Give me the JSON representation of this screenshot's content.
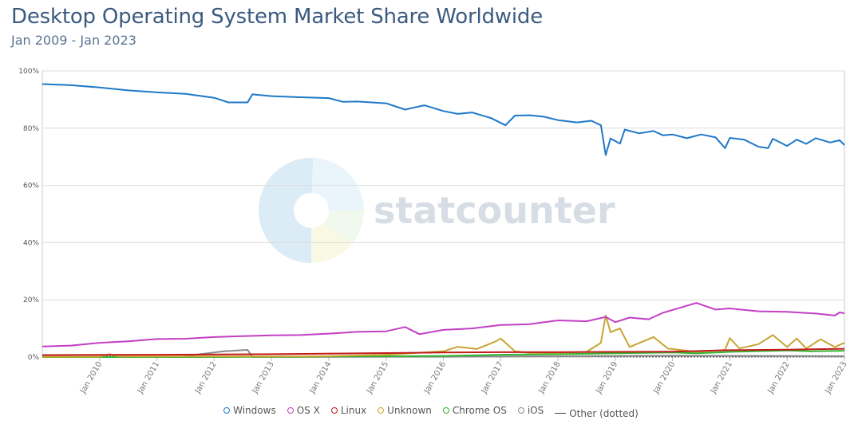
{
  "chart_data": {
    "type": "line",
    "title": "Desktop Operating System Market Share Worldwide",
    "subtitle": "Jan 2009 - Jan 2023",
    "xlabel": "",
    "ylabel": "",
    "x_range": [
      "2009-01",
      "2023-01"
    ],
    "ylim": [
      0,
      100
    ],
    "y_ticks": [
      "0%",
      "20%",
      "40%",
      "60%",
      "80%",
      "100%"
    ],
    "x_ticks": [
      "Jan 2010",
      "Jan 2011",
      "Jan 2012",
      "Jan 2013",
      "Jan 2014",
      "Jan 2015",
      "Jan 2016",
      "Jan 2017",
      "Jan 2018",
      "Jan 2019",
      "Jan 2020",
      "Jan 2021",
      "Jan 2022",
      "Jan 2023"
    ],
    "grid": true,
    "legend_position": "bottom",
    "watermark": "statcounter",
    "series": [
      {
        "name": "Windows",
        "color": "#1f78c8",
        "points": [
          [
            "2009-01",
            95.4
          ],
          [
            "2009-07",
            95.0
          ],
          [
            "2010-01",
            94.2
          ],
          [
            "2010-07",
            93.2
          ],
          [
            "2011-01",
            92.5
          ],
          [
            "2011-07",
            92.0
          ],
          [
            "2012-01",
            90.6
          ],
          [
            "2012-04",
            89.0
          ],
          [
            "2012-08",
            89.0
          ],
          [
            "2012-09",
            91.8
          ],
          [
            "2013-01",
            91.2
          ],
          [
            "2013-07",
            90.8
          ],
          [
            "2014-01",
            90.5
          ],
          [
            "2014-04",
            89.2
          ],
          [
            "2014-07",
            89.3
          ],
          [
            "2015-01",
            88.7
          ],
          [
            "2015-05",
            86.5
          ],
          [
            "2015-09",
            88.0
          ],
          [
            "2016-01",
            86.0
          ],
          [
            "2016-04",
            85.0
          ],
          [
            "2016-07",
            85.5
          ],
          [
            "2016-11",
            83.5
          ],
          [
            "2017-02",
            81.0
          ],
          [
            "2017-04",
            84.4
          ],
          [
            "2017-07",
            84.5
          ],
          [
            "2017-10",
            84.0
          ],
          [
            "2018-01",
            82.8
          ],
          [
            "2018-05",
            82.0
          ],
          [
            "2018-08",
            82.6
          ],
          [
            "2018-10",
            81.0
          ],
          [
            "2018-11",
            70.6
          ],
          [
            "2018-12",
            76.4
          ],
          [
            "2019-02",
            74.6
          ],
          [
            "2019-03",
            79.5
          ],
          [
            "2019-06",
            78.2
          ],
          [
            "2019-09",
            79.0
          ],
          [
            "2019-11",
            77.5
          ],
          [
            "2020-01",
            77.8
          ],
          [
            "2020-04",
            76.5
          ],
          [
            "2020-07",
            77.8
          ],
          [
            "2020-10",
            76.8
          ],
          [
            "2020-12",
            73.0
          ],
          [
            "2021-01",
            76.6
          ],
          [
            "2021-04",
            76.0
          ],
          [
            "2021-07",
            73.5
          ],
          [
            "2021-09",
            73.0
          ],
          [
            "2021-10",
            76.3
          ],
          [
            "2022-01",
            73.8
          ],
          [
            "2022-03",
            76.0
          ],
          [
            "2022-05",
            74.5
          ],
          [
            "2022-07",
            76.5
          ],
          [
            "2022-10",
            75.0
          ],
          [
            "2022-12",
            75.8
          ],
          [
            "2023-01",
            74.1
          ]
        ]
      },
      {
        "name": "OS X",
        "color": "#c33ec4",
        "points": [
          [
            "2009-01",
            3.7
          ],
          [
            "2009-07",
            4.0
          ],
          [
            "2010-01",
            5.0
          ],
          [
            "2010-07",
            5.5
          ],
          [
            "2011-01",
            6.3
          ],
          [
            "2011-07",
            6.4
          ],
          [
            "2012-01",
            7.0
          ],
          [
            "2012-07",
            7.3
          ],
          [
            "2013-01",
            7.6
          ],
          [
            "2013-07",
            7.7
          ],
          [
            "2014-01",
            8.2
          ],
          [
            "2014-07",
            8.8
          ],
          [
            "2015-01",
            9.0
          ],
          [
            "2015-05",
            10.5
          ],
          [
            "2015-08",
            8.0
          ],
          [
            "2016-01",
            9.5
          ],
          [
            "2016-07",
            10.0
          ],
          [
            "2017-01",
            11.2
          ],
          [
            "2017-07",
            11.5
          ],
          [
            "2018-01",
            12.8
          ],
          [
            "2018-07",
            12.5
          ],
          [
            "2018-11",
            14.0
          ],
          [
            "2019-01",
            12.2
          ],
          [
            "2019-04",
            13.8
          ],
          [
            "2019-08",
            13.2
          ],
          [
            "2019-11",
            15.5
          ],
          [
            "2020-06",
            18.9
          ],
          [
            "2020-10",
            16.6
          ],
          [
            "2021-01",
            17.0
          ],
          [
            "2021-07",
            16.0
          ],
          [
            "2022-01",
            15.8
          ],
          [
            "2022-07",
            15.2
          ],
          [
            "2022-11",
            14.5
          ],
          [
            "2022-12",
            15.6
          ],
          [
            "2023-01",
            15.3
          ]
        ]
      },
      {
        "name": "Linux",
        "color": "#c21b1b",
        "points": [
          [
            "2009-01",
            0.7
          ],
          [
            "2011-01",
            0.8
          ],
          [
            "2013-01",
            1.0
          ],
          [
            "2015-01",
            1.4
          ],
          [
            "2016-01",
            1.6
          ],
          [
            "2017-01",
            1.7
          ],
          [
            "2018-01",
            1.7
          ],
          [
            "2019-01",
            1.8
          ],
          [
            "2020-01",
            1.9
          ],
          [
            "2021-01",
            2.4
          ],
          [
            "2022-01",
            2.6
          ],
          [
            "2023-01",
            2.9
          ]
        ]
      },
      {
        "name": "Unknown",
        "color": "#c8a533",
        "points": [
          [
            "2009-01",
            0.1
          ],
          [
            "2010-01",
            0.1
          ],
          [
            "2010-03",
            1.0
          ],
          [
            "2010-05",
            0.2
          ],
          [
            "2013-01",
            0.2
          ],
          [
            "2014-01",
            0.3
          ],
          [
            "2015-01",
            0.8
          ],
          [
            "2016-01",
            2.0
          ],
          [
            "2016-04",
            3.6
          ],
          [
            "2016-08",
            2.8
          ],
          [
            "2016-12",
            5.5
          ],
          [
            "2017-01",
            6.5
          ],
          [
            "2017-04",
            2.0
          ],
          [
            "2017-07",
            1.5
          ],
          [
            "2018-01",
            1.5
          ],
          [
            "2018-07",
            1.8
          ],
          [
            "2018-10",
            5.0
          ],
          [
            "2018-11",
            14.6
          ],
          [
            "2018-12",
            8.7
          ],
          [
            "2019-02",
            10.0
          ],
          [
            "2019-04",
            3.5
          ],
          [
            "2019-09",
            7.0
          ],
          [
            "2019-12",
            3.0
          ],
          [
            "2020-06",
            1.8
          ],
          [
            "2020-12",
            2.5
          ],
          [
            "2021-01",
            6.6
          ],
          [
            "2021-03",
            3.0
          ],
          [
            "2021-07",
            4.5
          ],
          [
            "2021-10",
            7.7
          ],
          [
            "2022-01",
            3.5
          ],
          [
            "2022-03",
            6.5
          ],
          [
            "2022-05",
            3.0
          ],
          [
            "2022-08",
            6.2
          ],
          [
            "2022-11",
            3.5
          ],
          [
            "2023-01",
            5.0
          ]
        ]
      },
      {
        "name": "Chrome OS",
        "color": "#2fb52f",
        "points": [
          [
            "2009-01",
            0.0
          ],
          [
            "2012-01",
            0.0
          ],
          [
            "2014-01",
            0.2
          ],
          [
            "2016-01",
            0.4
          ],
          [
            "2017-01",
            0.8
          ],
          [
            "2018-01",
            1.0
          ],
          [
            "2019-01",
            1.3
          ],
          [
            "2020-01",
            1.6
          ],
          [
            "2020-06",
            1.3
          ],
          [
            "2021-01",
            1.8
          ],
          [
            "2021-06",
            2.0
          ],
          [
            "2022-01",
            2.3
          ],
          [
            "2022-06",
            2.0
          ],
          [
            "2023-01",
            2.2
          ]
        ]
      },
      {
        "name": "iOS",
        "color": "#8a8a8a",
        "points": [
          [
            "2009-01",
            0.0
          ],
          [
            "2011-06",
            0.0
          ],
          [
            "2011-10",
            1.0
          ],
          [
            "2012-03",
            2.0
          ],
          [
            "2012-08",
            2.5
          ],
          [
            "2012-09",
            0.0
          ],
          [
            "2016-01",
            0.1
          ],
          [
            "2020-01",
            0.5
          ],
          [
            "2023-01",
            0.3
          ]
        ]
      },
      {
        "name": "Other (dotted)",
        "color": "#444444",
        "dotted": true,
        "points": [
          [
            "2009-01",
            0.2
          ],
          [
            "2023-01",
            0.1
          ]
        ]
      }
    ]
  }
}
